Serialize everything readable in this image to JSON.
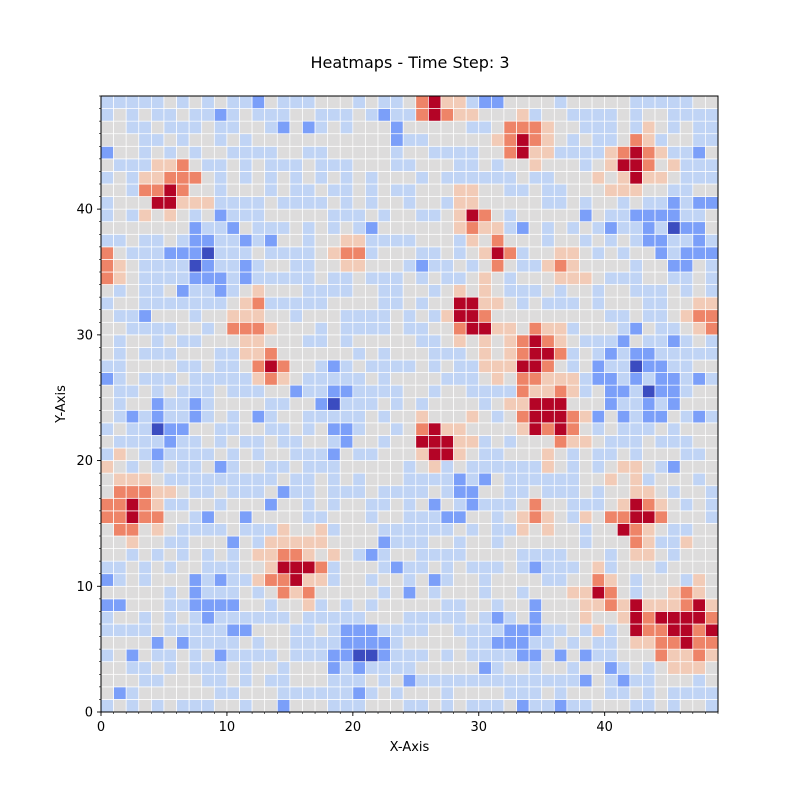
{
  "chart_data": {
    "type": "heatmap",
    "title": "Heatmaps - Time Step: 3",
    "xlabel": "X-Axis",
    "ylabel": "Y-Axis",
    "xlim": [
      0,
      49
    ],
    "ylim": [
      0,
      49
    ],
    "x_ticks": [
      0,
      10,
      20,
      30,
      40
    ],
    "y_ticks": [
      0,
      10,
      20,
      30,
      40
    ],
    "grid_size": [
      49,
      49
    ],
    "colormap": "coolwarm",
    "levels": 5,
    "palette": [
      "#3b4cc0",
      "#7b9ff9",
      "#c0d4f5",
      "#dddcdc",
      "#f2cbb7",
      "#ee8468",
      "#b40426"
    ],
    "cell_edge_color": "#ffffff",
    "hot_spots": [
      {
        "x": 26,
        "y": 48,
        "r": 1.2,
        "amp": 4
      },
      {
        "x": 33,
        "y": 45,
        "r": 1.3,
        "amp": 4
      },
      {
        "x": 42,
        "y": 43,
        "r": 1.5,
        "amp": 4
      },
      {
        "x": 5,
        "y": 41,
        "r": 1.5,
        "amp": 4
      },
      {
        "x": 29,
        "y": 39,
        "r": 1.2,
        "amp": 3
      },
      {
        "x": 19,
        "y": 36,
        "r": 1.0,
        "amp": 3
      },
      {
        "x": 31,
        "y": 36,
        "r": 1.0,
        "amp": 3
      },
      {
        "x": 36,
        "y": 35,
        "r": 1.0,
        "amp": 3
      },
      {
        "x": 0,
        "y": 35,
        "r": 1.0,
        "amp": 3
      },
      {
        "x": 11,
        "y": 31,
        "r": 1.2,
        "amp": 3
      },
      {
        "x": 29,
        "y": 31,
        "r": 1.4,
        "amp": 4
      },
      {
        "x": 48,
        "y": 31,
        "r": 1.0,
        "amp": 3
      },
      {
        "x": 34,
        "y": 28,
        "r": 1.5,
        "amp": 4
      },
      {
        "x": 13,
        "y": 27,
        "r": 1.2,
        "amp": 3
      },
      {
        "x": 35,
        "y": 23,
        "r": 1.7,
        "amp": 4
      },
      {
        "x": 26,
        "y": 21,
        "r": 1.5,
        "amp": 4
      },
      {
        "x": 2,
        "y": 16,
        "r": 1.6,
        "amp": 4
      },
      {
        "x": 42,
        "y": 15,
        "r": 1.6,
        "amp": 4
      },
      {
        "x": 34,
        "y": 15,
        "r": 1.0,
        "amp": 3
      },
      {
        "x": 15,
        "y": 11,
        "r": 1.7,
        "amp": 4
      },
      {
        "x": 39,
        "y": 9,
        "r": 1.3,
        "amp": 3
      },
      {
        "x": 46,
        "y": 6,
        "r": 2.2,
        "amp": 4
      },
      {
        "x": 42,
        "y": 7,
        "r": 1.0,
        "amp": 3
      }
    ],
    "cold_regions": [
      {
        "x": 8,
        "y": 35,
        "r": 5
      },
      {
        "x": 18,
        "y": 24,
        "r": 4
      },
      {
        "x": 42,
        "y": 26,
        "r": 5
      },
      {
        "x": 28,
        "y": 17,
        "r": 3
      },
      {
        "x": 8,
        "y": 7,
        "r": 4
      },
      {
        "x": 20,
        "y": 4,
        "r": 4
      },
      {
        "x": 32,
        "y": 5,
        "r": 3
      },
      {
        "x": 45,
        "y": 38,
        "r": 4
      },
      {
        "x": 4,
        "y": 21,
        "r": 3
      }
    ],
    "noise_seed": 3
  }
}
